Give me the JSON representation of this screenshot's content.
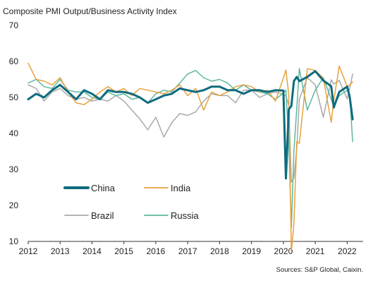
{
  "chart_data": {
    "type": "line",
    "title": "Composite PMI Output/Business Activity Index",
    "source": "Sources: S&P Global, Caixin.",
    "xlim": [
      2012,
      2022.5
    ],
    "ylim": [
      10,
      70
    ],
    "x_ticks": [
      2012,
      2013,
      2014,
      2015,
      2016,
      2017,
      2018,
      2019,
      2020,
      2021,
      2022
    ],
    "y_ticks": [
      10,
      20,
      30,
      40,
      50,
      60,
      70
    ],
    "grid": false,
    "series": [
      {
        "name": "China",
        "color": "#0e6b7e",
        "x": [
          2012,
          2012.25,
          2012.5,
          2012.75,
          2013,
          2013.25,
          2013.5,
          2013.75,
          2014,
          2014.25,
          2014.5,
          2014.75,
          2015,
          2015.25,
          2015.5,
          2015.75,
          2016,
          2016.25,
          2016.5,
          2016.75,
          2017,
          2017.25,
          2017.5,
          2017.75,
          2018,
          2018.25,
          2018.5,
          2018.75,
          2019,
          2019.25,
          2019.5,
          2019.75,
          2020,
          2020.08,
          2020.17,
          2020.25,
          2020.33,
          2020.42,
          2020.5,
          2020.75,
          2021,
          2021.25,
          2021.5,
          2021.58,
          2021.75,
          2022,
          2022.08,
          2022.17
        ],
        "y": [
          49.5,
          51,
          50,
          52,
          53.5,
          51.5,
          49.5,
          52,
          51,
          49.5,
          52,
          51.5,
          51.5,
          51,
          50,
          48.5,
          49.5,
          50.5,
          51,
          52.5,
          52,
          51.5,
          52,
          53,
          53,
          52,
          52,
          51,
          52,
          52,
          51.5,
          52,
          51.9,
          27.5,
          46.7,
          47.6,
          54.5,
          55.7,
          54.5,
          55.7,
          57.3,
          54.7,
          53.1,
          47.2,
          51.5,
          53,
          50.1,
          43.9
        ]
      },
      {
        "name": "India",
        "color": "#e8a13c",
        "x": [
          2012,
          2012.25,
          2012.5,
          2012.75,
          2013,
          2013.25,
          2013.5,
          2013.75,
          2014,
          2014.25,
          2014.5,
          2014.75,
          2015,
          2015.25,
          2015.5,
          2015.75,
          2016,
          2016.25,
          2016.5,
          2016.75,
          2017,
          2017.25,
          2017.5,
          2017.75,
          2018,
          2018.25,
          2018.5,
          2018.75,
          2019,
          2019.25,
          2019.5,
          2019.75,
          2020,
          2020.08,
          2020.17,
          2020.25,
          2020.33,
          2020.42,
          2020.5,
          2020.75,
          2021,
          2021.25,
          2021.5,
          2021.58,
          2021.75,
          2022,
          2022.08,
          2022.17
        ],
        "y": [
          59.5,
          55,
          54.5,
          53.5,
          55.5,
          51.5,
          48.5,
          48,
          49.5,
          51.5,
          53,
          51.5,
          52.5,
          50.5,
          52.5,
          52,
          51.5,
          51,
          52,
          53.5,
          50.5,
          52.5,
          46.5,
          51.5,
          50.5,
          51.5,
          53,
          53.5,
          53,
          51.5,
          52,
          49,
          55.4,
          57.6,
          50.6,
          7.2,
          14.8,
          37.8,
          37.2,
          58,
          57.5,
          55.4,
          43.1,
          49.2,
          58.7,
          53,
          53.5,
          54.3
        ]
      },
      {
        "name": "Brazil",
        "color": "#a9a9a9",
        "x": [
          2012,
          2012.25,
          2012.5,
          2012.75,
          2013,
          2013.25,
          2013.5,
          2013.75,
          2014,
          2014.25,
          2014.5,
          2014.75,
          2015,
          2015.25,
          2015.5,
          2015.75,
          2016,
          2016.25,
          2016.5,
          2016.75,
          2017,
          2017.25,
          2017.5,
          2017.75,
          2018,
          2018.25,
          2018.5,
          2018.75,
          2019,
          2019.25,
          2019.5,
          2019.75,
          2020,
          2020.08,
          2020.17,
          2020.25,
          2020.33,
          2020.42,
          2020.5,
          2020.75,
          2021,
          2021.25,
          2021.5,
          2021.58,
          2021.75,
          2022,
          2022.08,
          2022.17
        ],
        "y": [
          53.5,
          52.5,
          49,
          51.5,
          52.5,
          50.5,
          49.5,
          50,
          49,
          49.5,
          49,
          50.5,
          49,
          46.5,
          44,
          41,
          44.5,
          39,
          43,
          45.5,
          45,
          46,
          49,
          51,
          50.5,
          50.5,
          48.5,
          52,
          52,
          50,
          51,
          51.5,
          50.9,
          50.4,
          47.9,
          26.5,
          27.6,
          35.9,
          49.5,
          55.5,
          53.5,
          44.5,
          54.9,
          53.7,
          54.7,
          49.6,
          52.6,
          56.5
        ]
      },
      {
        "name": "Russia",
        "color": "#5cb89e",
        "x": [
          2012,
          2012.25,
          2012.5,
          2012.75,
          2013,
          2013.25,
          2013.5,
          2013.75,
          2014,
          2014.25,
          2014.5,
          2014.75,
          2015,
          2015.25,
          2015.5,
          2015.75,
          2016,
          2016.25,
          2016.5,
          2016.75,
          2017,
          2017.25,
          2017.5,
          2017.75,
          2018,
          2018.25,
          2018.5,
          2018.75,
          2019,
          2019.25,
          2019.5,
          2019.75,
          2020,
          2020.08,
          2020.17,
          2020.25,
          2020.33,
          2020.42,
          2020.5,
          2020.75,
          2021,
          2021.25,
          2021.5,
          2021.58,
          2021.75,
          2022,
          2022.08,
          2022.17
        ],
        "y": [
          54,
          55,
          53,
          52.5,
          55,
          52,
          51.5,
          51.5,
          50,
          49.5,
          51.5,
          50.5,
          51,
          49.5,
          50,
          48.5,
          51,
          52,
          51.5,
          54,
          56.5,
          57.5,
          55.5,
          54.5,
          55,
          54,
          52,
          53.5,
          52,
          51.5,
          51,
          49.5,
          51.2,
          52,
          37.2,
          13.9,
          35,
          47,
          58,
          46.5,
          52,
          55.5,
          49.5,
          47.5,
          50.5,
          52,
          50.8,
          37.7
        ]
      }
    ],
    "legend_order": [
      "China",
      "India",
      "Brazil",
      "Russia"
    ],
    "legend_position": "lower-left"
  }
}
